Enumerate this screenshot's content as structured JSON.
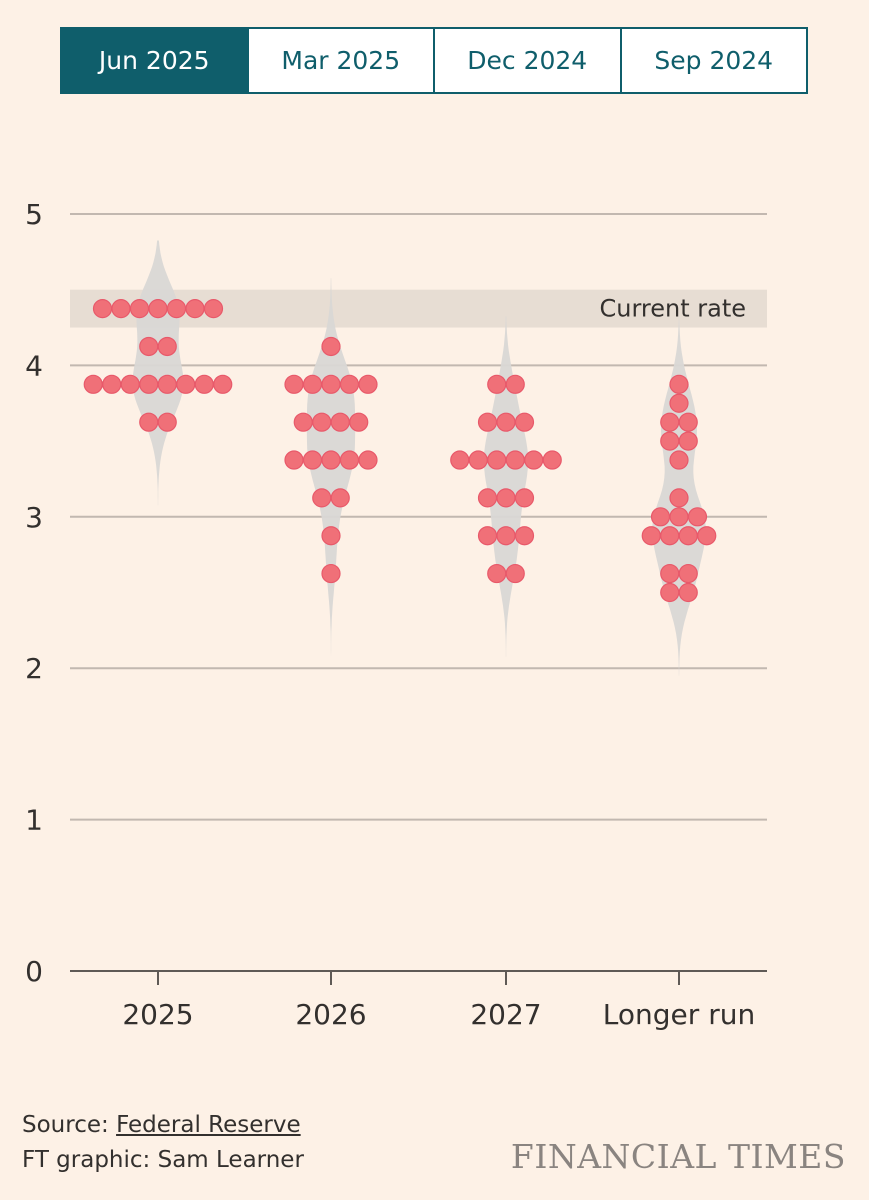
{
  "tabs": [
    {
      "label": "Jun 2025",
      "active": true
    },
    {
      "label": "Mar 2025",
      "active": false
    },
    {
      "label": "Dec 2024",
      "active": false
    },
    {
      "label": "Sep 2024",
      "active": false
    }
  ],
  "chart_data": {
    "type": "scatter",
    "subtype": "dot-plot with violin distributions",
    "ylim": [
      0,
      5
    ],
    "yticks": [
      0,
      1,
      2,
      3,
      4,
      5
    ],
    "categories": [
      "2025",
      "2026",
      "2027",
      "Longer run"
    ],
    "current_rate_band": {
      "low": 4.25,
      "high": 4.5,
      "label": "Current rate"
    },
    "dots": [
      [
        {
          "value": 4.375,
          "count": 7
        },
        {
          "value": 4.125,
          "count": 2
        },
        {
          "value": 3.875,
          "count": 8
        },
        {
          "value": 3.625,
          "count": 2
        }
      ],
      [
        {
          "value": 4.125,
          "count": 1
        },
        {
          "value": 3.875,
          "count": 5
        },
        {
          "value": 3.625,
          "count": 4
        },
        {
          "value": 3.375,
          "count": 5
        },
        {
          "value": 3.125,
          "count": 2
        },
        {
          "value": 2.875,
          "count": 1
        },
        {
          "value": 2.625,
          "count": 1
        }
      ],
      [
        {
          "value": 3.875,
          "count": 2
        },
        {
          "value": 3.625,
          "count": 3
        },
        {
          "value": 3.375,
          "count": 6
        },
        {
          "value": 3.125,
          "count": 3
        },
        {
          "value": 2.875,
          "count": 3
        },
        {
          "value": 2.625,
          "count": 2
        }
      ],
      [
        {
          "value": 3.875,
          "count": 1
        },
        {
          "value": 3.75,
          "count": 1
        },
        {
          "value": 3.625,
          "count": 2
        },
        {
          "value": 3.5,
          "count": 2
        },
        {
          "value": 3.375,
          "count": 1
        },
        {
          "value": 3.125,
          "count": 1
        },
        {
          "value": 3.0,
          "count": 3
        },
        {
          "value": 2.875,
          "count": 4
        },
        {
          "value": 2.625,
          "count": 2
        },
        {
          "value": 2.5,
          "count": 2
        }
      ]
    ],
    "colors": {
      "dot": "#f07078",
      "dot_stroke": "#e8596a",
      "violin": "#d9d7d5",
      "band": "#e7ddd3",
      "grid": "#c2b8b0"
    }
  },
  "footer": {
    "source_prefix": "Source: ",
    "source_link": "Federal Reserve",
    "credit": "FT graphic: Sam Learner"
  },
  "brand": "FINANCIAL TIMES"
}
